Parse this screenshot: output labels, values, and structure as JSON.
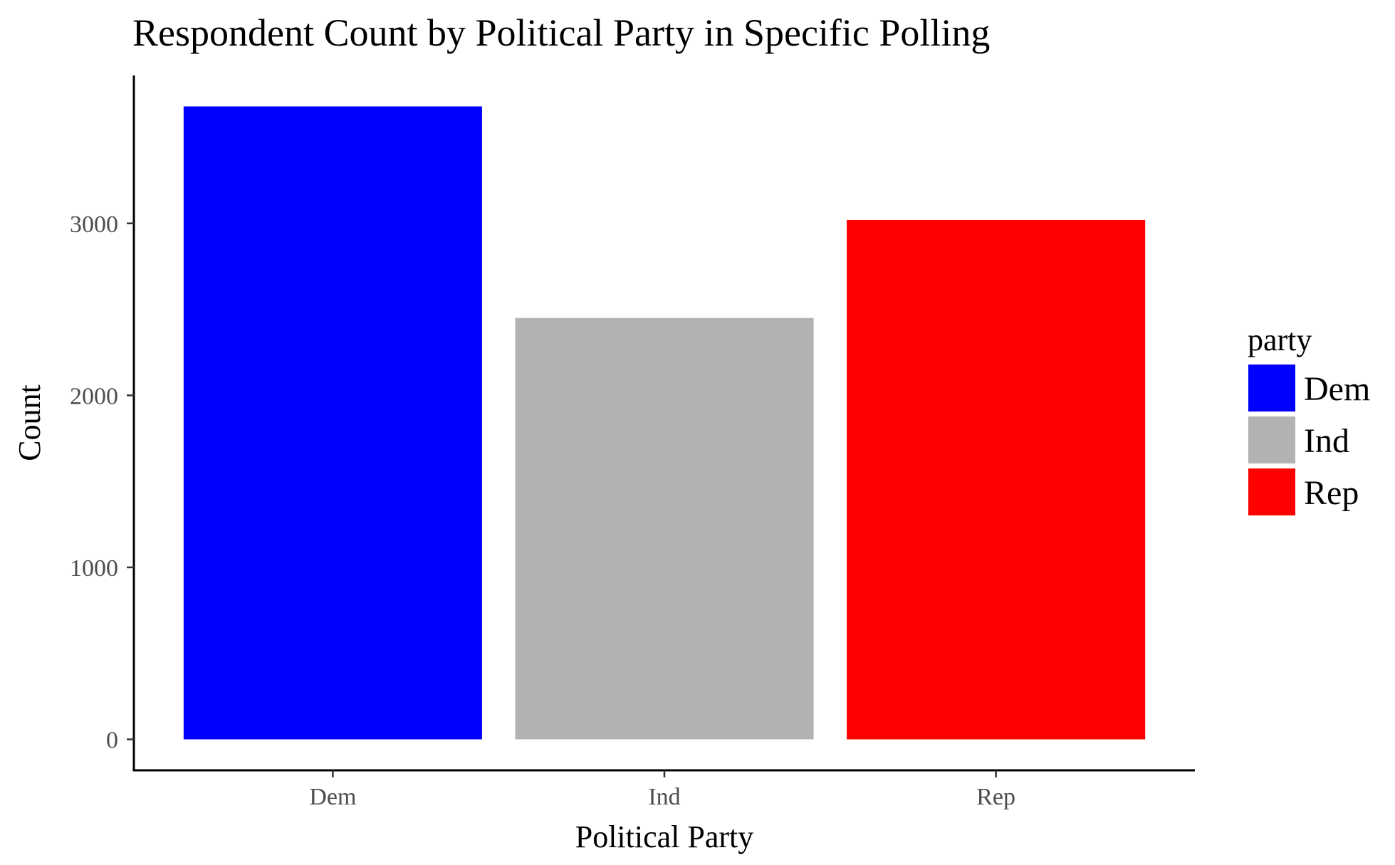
{
  "chart_data": {
    "type": "bar",
    "title": "Respondent Count by Political Party in Specific Polling",
    "xlabel": "Political Party",
    "ylabel": "Count",
    "categories": [
      "Dem",
      "Ind",
      "Rep"
    ],
    "values": [
      3680,
      2450,
      3020
    ],
    "colors": [
      "#0000ff",
      "#b2b2b2",
      "#ff0000"
    ],
    "y_ticks": [
      0,
      1000,
      2000,
      3000
    ],
    "ylim": [
      -180,
      3860
    ],
    "grid": false,
    "legend": {
      "title": "party",
      "position": "right",
      "entries": [
        "Dem",
        "Ind",
        "Rep"
      ]
    }
  }
}
